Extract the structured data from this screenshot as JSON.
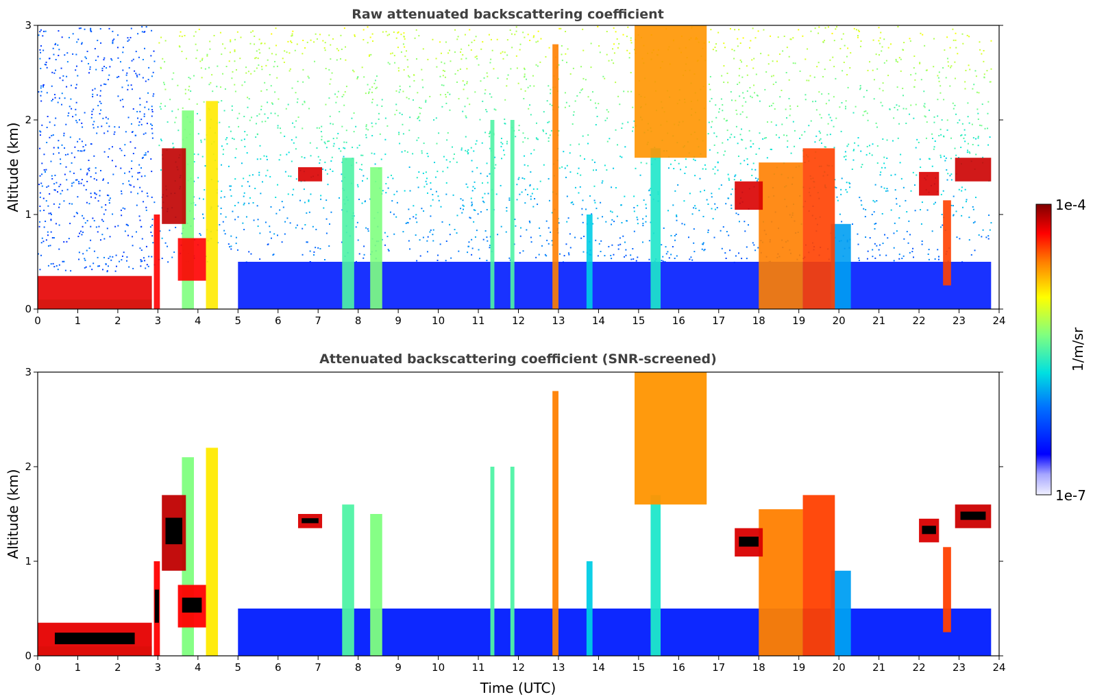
{
  "chart_data": [
    {
      "type": "heatmap",
      "title": "Raw attenuated backscattering coefficient",
      "xlabel": "",
      "ylabel": "Altitude (km)",
      "xlim": [
        0,
        24
      ],
      "ylim": [
        0,
        3
      ],
      "xticks": [
        "0",
        "1",
        "2",
        "3",
        "4",
        "5",
        "6",
        "7",
        "8",
        "9",
        "10",
        "11",
        "12",
        "13",
        "14",
        "15",
        "16",
        "17",
        "18",
        "19",
        "20",
        "21",
        "22",
        "23",
        "24"
      ],
      "yticks": [
        "0",
        "1",
        "2",
        "3"
      ],
      "screened": false
    },
    {
      "type": "heatmap",
      "title": "Attenuated backscattering coefficient (SNR-screened)",
      "xlabel": "Time (UTC)",
      "ylabel": "Altitude (km)",
      "xlim": [
        0,
        24
      ],
      "ylim": [
        0,
        3
      ],
      "xticks": [
        "0",
        "1",
        "2",
        "3",
        "4",
        "5",
        "6",
        "7",
        "8",
        "9",
        "10",
        "11",
        "12",
        "13",
        "14",
        "15",
        "16",
        "17",
        "18",
        "19",
        "20",
        "21",
        "22",
        "23",
        "24"
      ],
      "yticks": [
        "0",
        "1",
        "2",
        "3"
      ],
      "screened": true
    }
  ],
  "colorbar": {
    "label": "1/m/sr",
    "max_label": "1e-4",
    "min_label": "1e-7",
    "scale": "log",
    "colormap": "jet"
  },
  "features": [
    {
      "t0": 0.0,
      "t1": 2.85,
      "z0": 0.0,
      "z1": 0.35,
      "level": 0.92
    },
    {
      "t0": 0.0,
      "t1": 2.85,
      "z0": 0.0,
      "z1": 0.1,
      "level": 0.5
    },
    {
      "t0": 2.9,
      "t1": 3.05,
      "z0": 0.0,
      "z1": 1.0,
      "level": 0.9
    },
    {
      "t0": 3.1,
      "t1": 3.7,
      "z0": 0.9,
      "z1": 1.7,
      "level": 0.95
    },
    {
      "t0": 3.5,
      "t1": 4.2,
      "z0": 0.3,
      "z1": 0.75,
      "level": 0.9
    },
    {
      "t0": 3.6,
      "t1": 3.9,
      "z0": 0.0,
      "z1": 2.1,
      "level": 0.55
    },
    {
      "t0": 4.2,
      "t1": 4.5,
      "z0": 0.0,
      "z1": 2.2,
      "level": 0.7
    },
    {
      "t0": 6.5,
      "t1": 7.1,
      "z0": 1.35,
      "z1": 1.5,
      "level": 0.93
    },
    {
      "t0": 7.6,
      "t1": 7.9,
      "z0": 0.0,
      "z1": 1.6,
      "level": 0.5
    },
    {
      "t0": 8.3,
      "t1": 8.6,
      "z0": 0.0,
      "z1": 1.5,
      "level": 0.55
    },
    {
      "t0": 11.3,
      "t1": 11.4,
      "z0": 0.0,
      "z1": 2.0,
      "level": 0.5
    },
    {
      "t0": 11.8,
      "t1": 11.9,
      "z0": 0.0,
      "z1": 2.0,
      "level": 0.5
    },
    {
      "t0": 12.85,
      "t1": 13.0,
      "z0": 0.0,
      "z1": 2.8,
      "level": 0.8
    },
    {
      "t0": 13.7,
      "t1": 13.85,
      "z0": 0.0,
      "z1": 1.0,
      "level": 0.4
    },
    {
      "t0": 15.3,
      "t1": 15.55,
      "z0": 0.0,
      "z1": 1.7,
      "level": 0.45
    },
    {
      "t0": 14.9,
      "t1": 16.7,
      "z0": 1.6,
      "z1": 3.0,
      "level": 0.78
    },
    {
      "t0": 17.4,
      "t1": 18.1,
      "z0": 1.05,
      "z1": 1.35,
      "level": 0.93
    },
    {
      "t0": 18.0,
      "t1": 19.1,
      "z0": 0.0,
      "z1": 1.55,
      "level": 0.8
    },
    {
      "t0": 19.1,
      "t1": 19.9,
      "z0": 0.0,
      "z1": 1.7,
      "level": 0.85
    },
    {
      "t0": 19.8,
      "t1": 20.3,
      "z0": 0.0,
      "z1": 0.9,
      "level": 0.35
    },
    {
      "t0": 22.0,
      "t1": 22.5,
      "z0": 1.2,
      "z1": 1.45,
      "level": 0.93
    },
    {
      "t0": 22.6,
      "t1": 22.8,
      "z0": 0.25,
      "z1": 1.15,
      "level": 0.85
    },
    {
      "t0": 22.9,
      "t1": 23.8,
      "z0": 1.35,
      "z1": 1.6,
      "level": 0.94
    },
    {
      "t0": 5.0,
      "t1": 23.8,
      "z0": 0.0,
      "z1": 0.5,
      "level": 0.18
    }
  ]
}
